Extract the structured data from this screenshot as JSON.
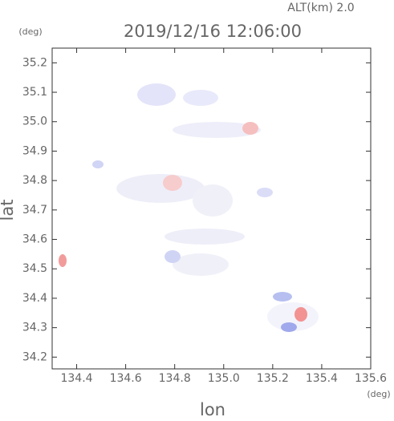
{
  "chart_data": {
    "type": "heatmap",
    "title": "2019/12/16 12:06:00",
    "subtitle": "ALT(km) 2.0",
    "x_label": "lon",
    "y_label": "lat",
    "x_unit": "(deg)",
    "y_unit": "(deg)",
    "xlim": [
      134.3,
      135.6
    ],
    "xticks": [
      134.4,
      134.6,
      134.8,
      {
        "value": 135.0,
        "label": "135.0"
      },
      135.2,
      135.4,
      135.6
    ],
    "ylim": [
      34.16,
      35.25
    ],
    "yticks": [
      34.2,
      34.3,
      34.4,
      34.5,
      34.6,
      34.7,
      34.8,
      34.9,
      {
        "value": 35.0,
        "label": "35.0"
      },
      35.1,
      35.2
    ]
  }
}
